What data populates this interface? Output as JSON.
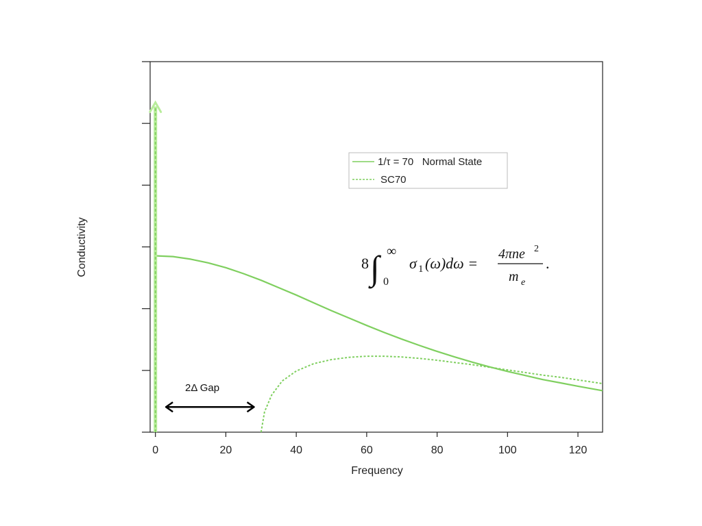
{
  "chart_data": {
    "type": "line",
    "xlabel": "Frequency",
    "ylabel": "Conductivity",
    "xlim": [
      -1.5,
      127
    ],
    "ylim": [
      0,
      1
    ],
    "x_ticks": [
      0,
      20,
      40,
      60,
      80,
      100,
      120
    ],
    "y_tick_count": 7,
    "grid": false,
    "legend_position": "top-right",
    "colors": {
      "series": "#7fcf5f",
      "delta_arrow": "#b8ec9b",
      "text": "#222222"
    },
    "series": [
      {
        "name": "1/τ = 70   Normal State",
        "style": "solid",
        "x": [
          0,
          5,
          10,
          15,
          20,
          25,
          30,
          35,
          40,
          45,
          50,
          55,
          60,
          65,
          70,
          75,
          80,
          85,
          90,
          95,
          100,
          105,
          110,
          115,
          120,
          127
        ],
        "y": [
          0.476,
          0.474,
          0.467,
          0.457,
          0.444,
          0.428,
          0.41,
          0.39,
          0.37,
          0.349,
          0.328,
          0.308,
          0.288,
          0.269,
          0.251,
          0.234,
          0.218,
          0.203,
          0.189,
          0.176,
          0.164,
          0.153,
          0.142,
          0.133,
          0.124,
          0.112
        ]
      },
      {
        "name": "SC70",
        "style": "dashed",
        "x": [
          30,
          31,
          33,
          36,
          40,
          45,
          50,
          55,
          60,
          65,
          70,
          75,
          80,
          85,
          90,
          95,
          100,
          105,
          110,
          115,
          120,
          127
        ],
        "y": [
          0.0,
          0.055,
          0.1,
          0.138,
          0.165,
          0.185,
          0.196,
          0.202,
          0.205,
          0.205,
          0.203,
          0.199,
          0.194,
          0.188,
          0.182,
          0.175,
          0.168,
          0.161,
          0.154,
          0.148,
          0.141,
          0.131
        ]
      }
    ],
    "delta_function": {
      "x": 0,
      "y_top": 0.89
    },
    "annotations": {
      "gap_label": "2Δ Gap",
      "gap_arrow": {
        "x_start": 3,
        "x_end": 28,
        "y": 0.068
      },
      "equation": {
        "coefficient": "8",
        "integral": "∫",
        "upper": "∞",
        "lower": "0",
        "integrand": "σ",
        "integrand_sub": "1",
        "integrand_rest": "(ω)dω =",
        "numerator": "4πne",
        "numerator_sup": "2",
        "denominator": "m",
        "denominator_sub": "e",
        "trailing": "."
      }
    }
  }
}
